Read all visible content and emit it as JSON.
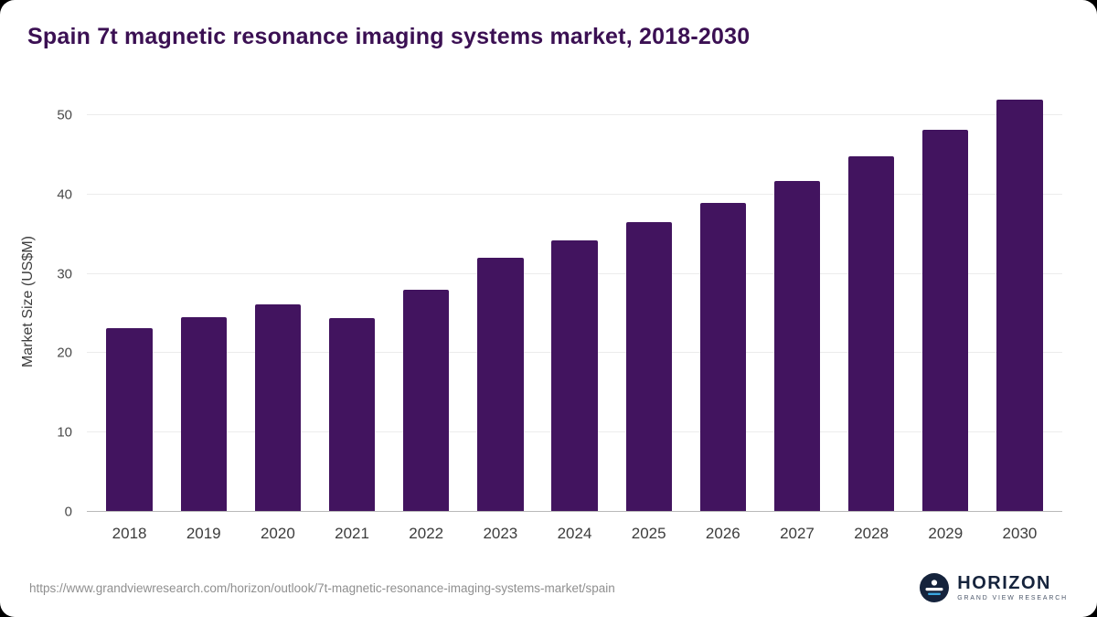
{
  "title": "Spain 7t magnetic resonance imaging systems market, 2018-2030",
  "chart_data": {
    "type": "bar",
    "title": "Spain 7t magnetic resonance imaging systems market, 2018-2030",
    "categories": [
      "2018",
      "2019",
      "2020",
      "2021",
      "2022",
      "2023",
      "2024",
      "2025",
      "2026",
      "2027",
      "2028",
      "2029",
      "2030"
    ],
    "values": [
      23.2,
      24.6,
      26.2,
      24.4,
      28.0,
      32.0,
      34.2,
      36.5,
      39.0,
      41.7,
      44.8,
      48.2,
      52.0
    ],
    "xlabel": "",
    "ylabel": "Market Size (US$M)",
    "ylim": [
      0,
      53
    ],
    "yticks": [
      0,
      10,
      20,
      30,
      40,
      50
    ],
    "grid": true,
    "legend": "none",
    "bar_color": "#42145f"
  },
  "colors": {
    "bar": "#42145f",
    "title": "#3b1053",
    "gridline": "#ececec",
    "axis": "#b9b9b9",
    "logo_navy": "#15233c",
    "logo_blue": "#3aa7e0"
  },
  "footer": {
    "source_url": "https://www.grandviewresearch.com/horizon/outlook/7t-magnetic-resonance-imaging-systems-market/spain",
    "logo_title": "HORIZON",
    "logo_subtitle": "GRAND VIEW RESEARCH"
  }
}
